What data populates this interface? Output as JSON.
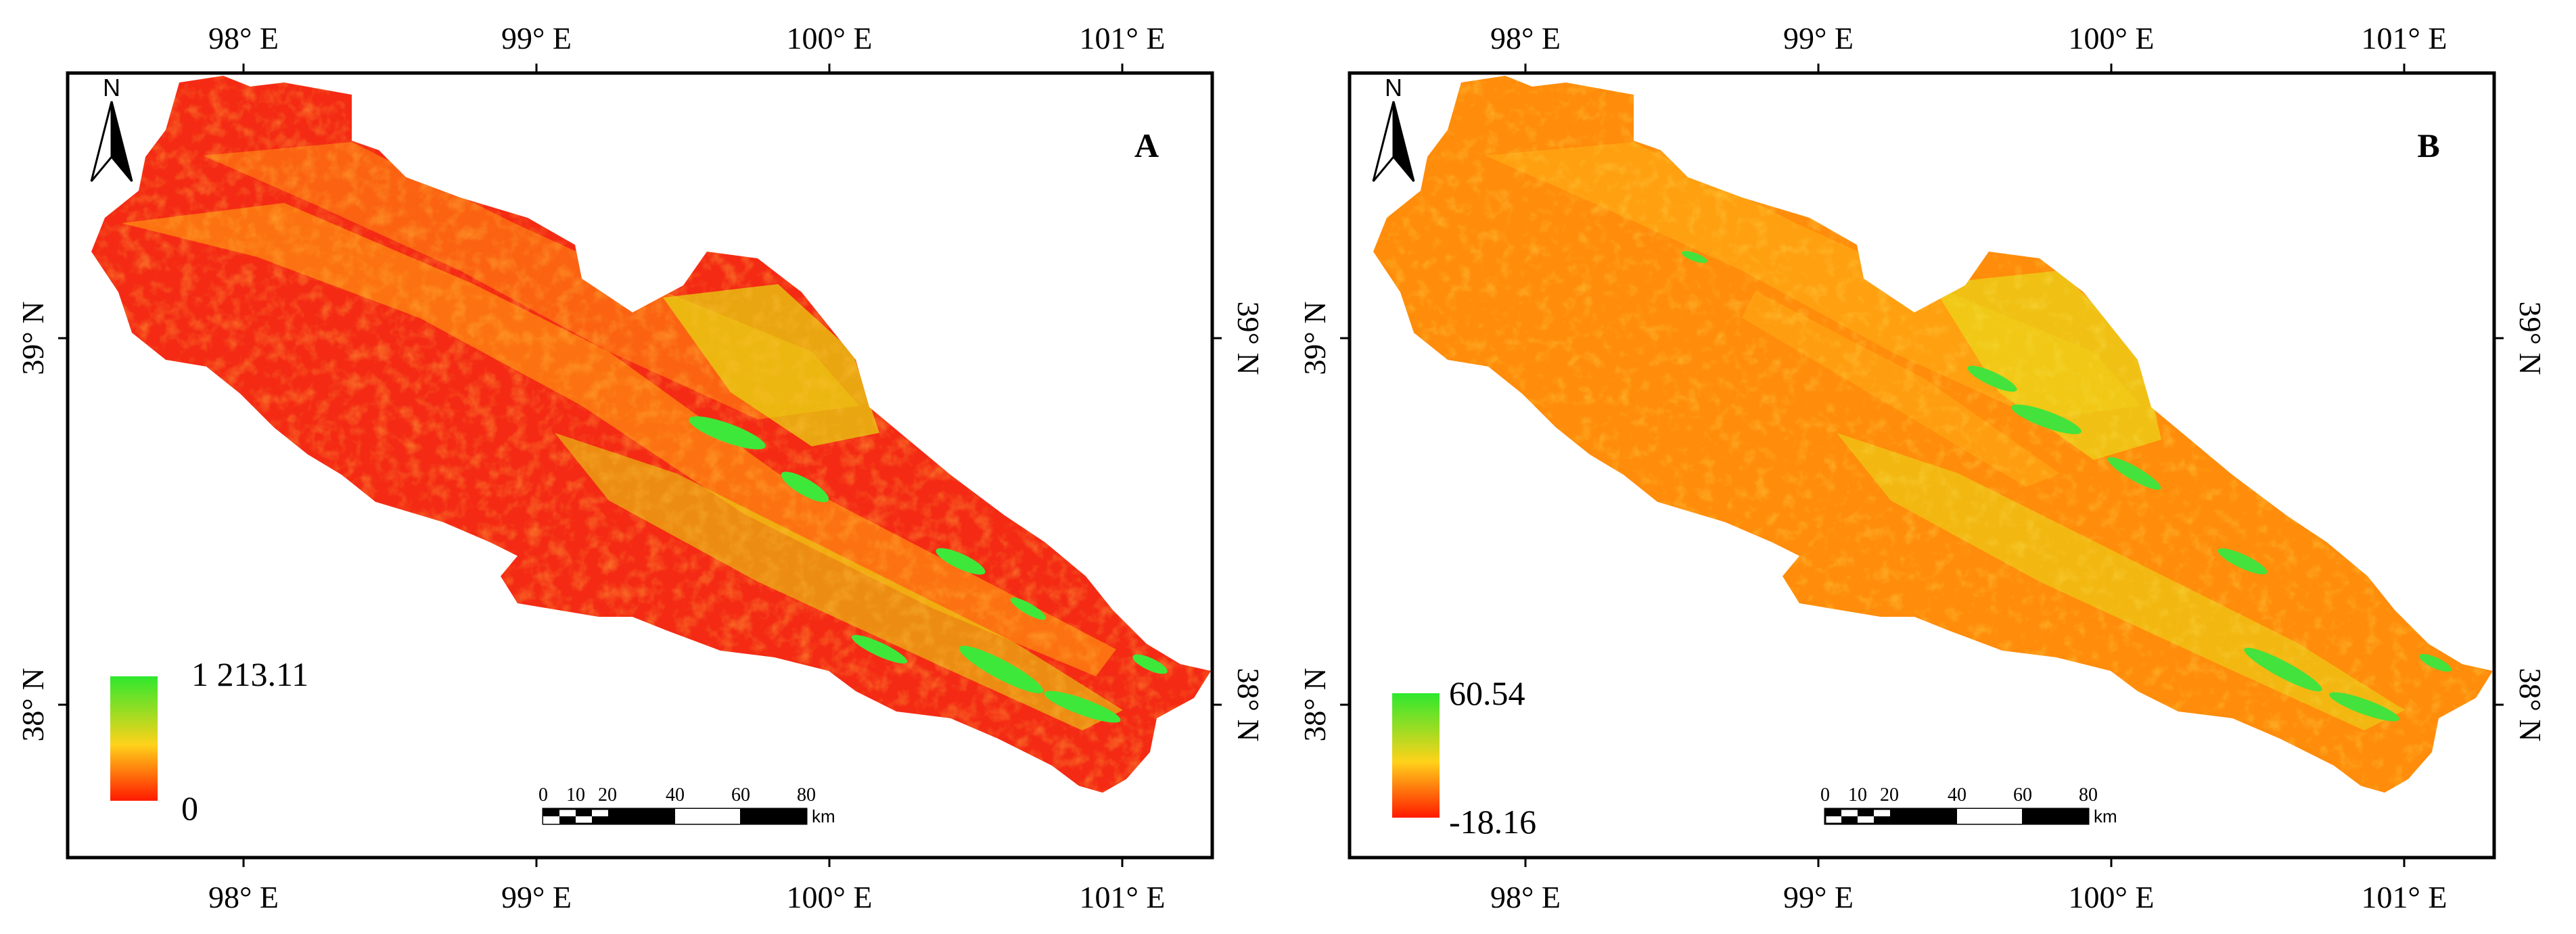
{
  "panels": [
    {
      "id": "A",
      "label": "A",
      "top_axis": [
        "98° E",
        "99° E",
        "100° E",
        "101° E"
      ],
      "bottom_axis": [
        "98° E",
        "99° E",
        "100° E",
        "101° E"
      ],
      "left_axis": [
        "39° N",
        "38° N"
      ],
      "right_axis": [
        "39° N",
        "38° N"
      ],
      "north_label": "N",
      "legend": {
        "max_label": "1 213.11",
        "min_label": "0",
        "colors": [
          "#2ee82e",
          "#ffd21a",
          "#ff1a00"
        ]
      },
      "scalebar": {
        "ticks": [
          "0",
          "10",
          "20",
          "40",
          "60",
          "80"
        ],
        "unit": "km"
      },
      "palette": {
        "dominant": "#f42a14",
        "secondary": "#ff8a10",
        "tertiary": "#e6dc10",
        "accent": "#3ee83a"
      }
    },
    {
      "id": "B",
      "label": "B",
      "top_axis": [
        "98° E",
        "99° E",
        "100° E",
        "101° E"
      ],
      "bottom_axis": [
        "98° E",
        "99° E",
        "100° E",
        "101° E"
      ],
      "left_axis": [
        "39° N",
        "38° N"
      ],
      "right_axis": [
        "39° N",
        "38° N"
      ],
      "north_label": "N",
      "legend": {
        "max_label": "60.54",
        "min_label": "-18.16",
        "colors": [
          "#2ee82e",
          "#ffd21a",
          "#ff1a00"
        ]
      },
      "scalebar": {
        "ticks": [
          "0",
          "10",
          "20",
          "40",
          "60",
          "80"
        ],
        "unit": "km"
      },
      "palette": {
        "dominant": "#ff8c0a",
        "secondary": "#ffa814",
        "tertiary": "#e8e21a",
        "accent": "#44e23c"
      }
    }
  ]
}
